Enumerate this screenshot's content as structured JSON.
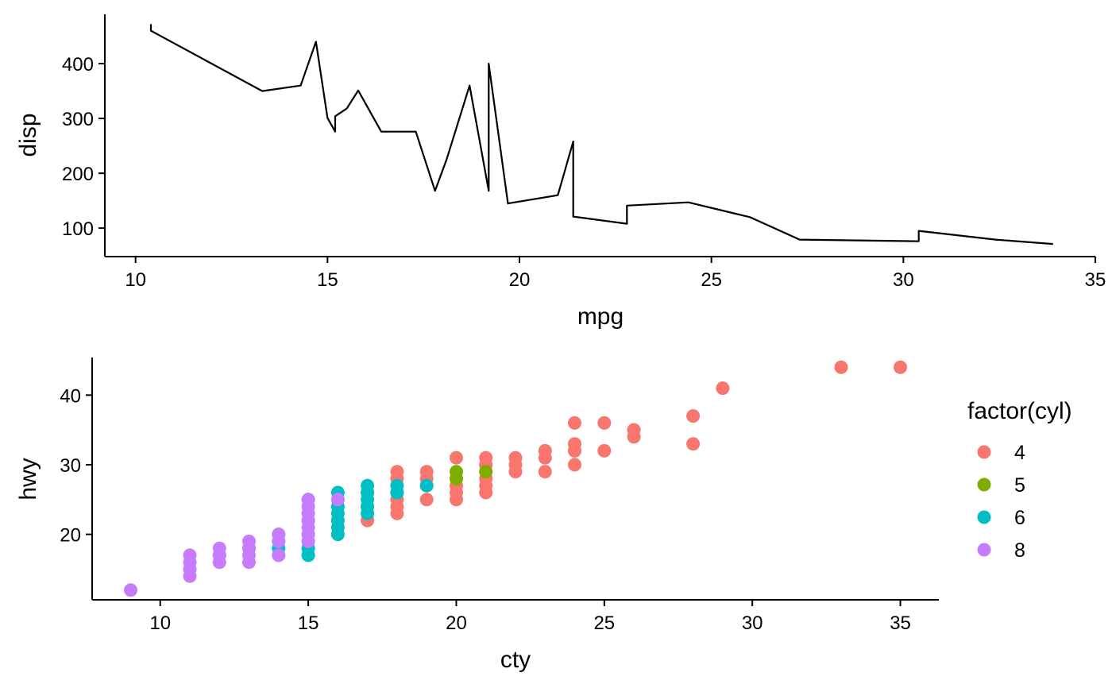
{
  "chart_data": [
    {
      "type": "line",
      "xlabel": "mpg",
      "ylabel": "disp",
      "xlim": [
        9.2,
        35
      ],
      "ylim": [
        48,
        490
      ],
      "xticks": [
        10,
        15,
        20,
        25,
        30,
        35
      ],
      "yticks": [
        100,
        200,
        300,
        400
      ],
      "grid": false,
      "series": [
        {
          "points": [
            [
              10.4,
              472
            ],
            [
              10.4,
              460
            ],
            [
              13.3,
              350
            ],
            [
              14.3,
              360
            ],
            [
              14.7,
              440
            ],
            [
              15.0,
              301
            ],
            [
              15.2,
              276
            ],
            [
              15.2,
              304
            ],
            [
              15.5,
              318
            ],
            [
              15.8,
              351
            ],
            [
              16.4,
              276
            ],
            [
              17.3,
              276
            ],
            [
              17.8,
              168
            ],
            [
              18.1,
              225
            ],
            [
              18.7,
              360
            ],
            [
              19.2,
              168
            ],
            [
              19.2,
              400
            ],
            [
              19.7,
              145
            ],
            [
              21.0,
              160
            ],
            [
              21.4,
              258
            ],
            [
              21.4,
              121
            ],
            [
              22.8,
              108
            ],
            [
              22.8,
              141
            ],
            [
              24.4,
              147
            ],
            [
              26.0,
              120
            ],
            [
              27.3,
              79
            ],
            [
              30.4,
              76
            ],
            [
              30.4,
              95
            ],
            [
              32.4,
              79
            ],
            [
              33.9,
              71
            ]
          ]
        }
      ]
    },
    {
      "type": "scatter",
      "xlabel": "cty",
      "ylabel": "hwy",
      "xlim": [
        7.7,
        36.3
      ],
      "ylim": [
        10.6,
        45.4
      ],
      "xticks": [
        10,
        15,
        20,
        25,
        30,
        35
      ],
      "yticks": [
        20,
        30,
        40
      ],
      "grid": false,
      "legend": {
        "title": "factor(cyl)",
        "position": "right",
        "entries": [
          {
            "label": "4",
            "color": "#F8766D"
          },
          {
            "label": "5",
            "color": "#7CAE00"
          },
          {
            "label": "6",
            "color": "#00BFC4"
          },
          {
            "label": "8",
            "color": "#C77CFF"
          }
        ]
      },
      "series": [
        {
          "name": "4",
          "color": "#F8766D",
          "points": [
            [
              18,
              29
            ],
            [
              21,
              29
            ],
            [
              20,
              31
            ],
            [
              21,
              30
            ],
            [
              18,
              26
            ],
            [
              18,
              25
            ],
            [
              18,
              24
            ],
            [
              19,
              25
            ],
            [
              21,
              26
            ],
            [
              21,
              27
            ],
            [
              22,
              29
            ],
            [
              18,
              23
            ],
            [
              24,
              32
            ],
            [
              19,
              27
            ],
            [
              20,
              26
            ],
            [
              23,
              29
            ],
            [
              24,
              30
            ],
            [
              21,
              28
            ],
            [
              25,
              36
            ],
            [
              24,
              36
            ],
            [
              26,
              35
            ],
            [
              28,
              37
            ],
            [
              28,
              33
            ],
            [
              33,
              44
            ],
            [
              35,
              44
            ],
            [
              29,
              41
            ],
            [
              19,
              29
            ],
            [
              22,
              31
            ],
            [
              23,
              31
            ],
            [
              24,
              33
            ],
            [
              26,
              34
            ],
            [
              25,
              32
            ],
            [
              21,
              31
            ],
            [
              22,
              30
            ],
            [
              23,
              32
            ],
            [
              20,
              28
            ],
            [
              19,
              28
            ],
            [
              17,
              22
            ],
            [
              20,
              25
            ],
            [
              15,
              20
            ],
            [
              20,
              27
            ],
            [
              18,
              28
            ],
            [
              24,
              32
            ],
            [
              21,
              30
            ]
          ]
        },
        {
          "name": "5",
          "color": "#7CAE00",
          "points": [
            [
              21,
              29
            ],
            [
              20,
              29
            ],
            [
              20,
              28
            ]
          ]
        },
        {
          "name": "6",
          "color": "#00BFC4",
          "points": [
            [
              16,
              26
            ],
            [
              17,
              26
            ],
            [
              15,
              25
            ],
            [
              16,
              25
            ],
            [
              17,
              26
            ],
            [
              16,
              24
            ],
            [
              15,
              23
            ],
            [
              16,
              22
            ],
            [
              17,
              23
            ],
            [
              17,
              25
            ],
            [
              18,
              26
            ],
            [
              14,
              20
            ],
            [
              14,
              19
            ],
            [
              15,
              17
            ],
            [
              16,
              20
            ],
            [
              17,
              24
            ],
            [
              15,
              19
            ],
            [
              15,
              18
            ],
            [
              16,
              23
            ],
            [
              17,
              27
            ],
            [
              18,
              27
            ],
            [
              19,
              27
            ],
            [
              14,
              17
            ],
            [
              14,
              18
            ],
            [
              15,
              17
            ],
            [
              16,
              21
            ],
            [
              17,
              24
            ],
            [
              18,
              26
            ]
          ]
        },
        {
          "name": "8",
          "color": "#C77CFF",
          "points": [
            [
              15,
              25
            ],
            [
              14,
              20
            ],
            [
              11,
              15
            ],
            [
              11,
              17
            ],
            [
              12,
              17
            ],
            [
              15,
              24
            ],
            [
              15,
              23
            ],
            [
              15,
              22
            ],
            [
              15,
              21
            ],
            [
              16,
              25
            ],
            [
              13,
              19
            ],
            [
              13,
              18
            ],
            [
              14,
              19
            ],
            [
              11,
              14
            ],
            [
              9,
              12
            ],
            [
              13,
              17
            ],
            [
              13,
              16
            ],
            [
              12,
              16
            ],
            [
              12,
              18
            ],
            [
              11,
              16
            ],
            [
              13,
              18
            ],
            [
              14,
              17
            ],
            [
              15,
              22
            ],
            [
              15,
              20
            ],
            [
              15,
              19
            ],
            [
              11,
              15
            ],
            [
              12,
              17
            ]
          ]
        }
      ]
    }
  ]
}
